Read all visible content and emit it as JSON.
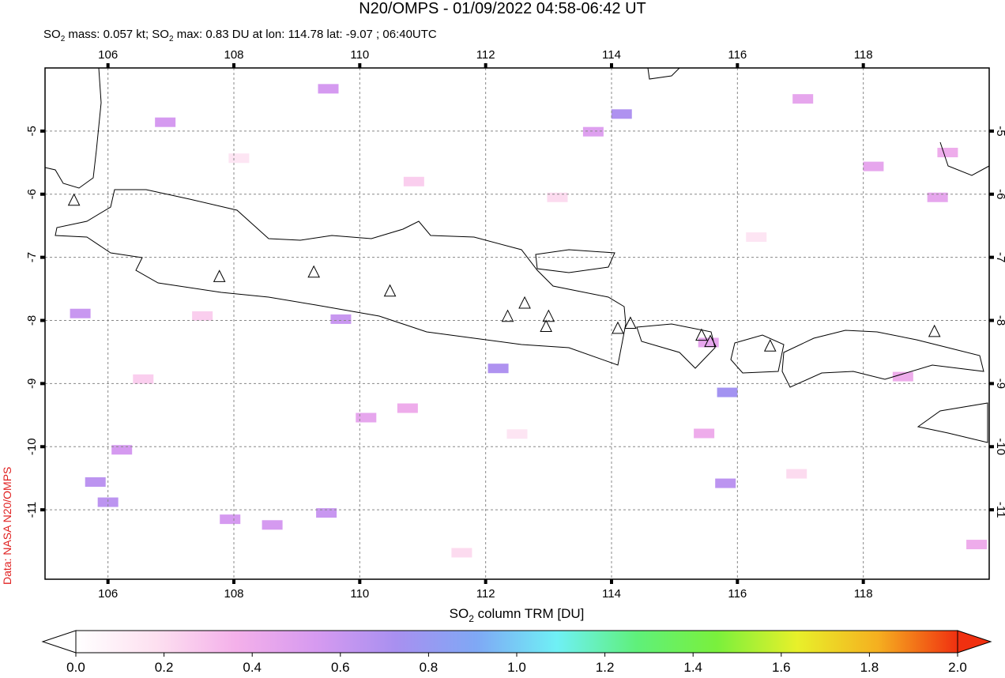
{
  "chart_data": {
    "type": "map",
    "title": "N20/OMPS - 01/09/2022 04:58-06:42 UT",
    "subtitle_parts": [
      "SO",
      "2",
      " mass: 0.057 kt; SO",
      "2",
      " max: 0.83 DU at lon: 114.78 lat: -9.07 ; 06:40UTC"
    ],
    "source": "Data: NASA N20/OMPS",
    "xlim": [
      105,
      120
    ],
    "ylim": [
      -12.1,
      -4
    ],
    "xticks": [
      106,
      108,
      110,
      112,
      114,
      116,
      118
    ],
    "yticks": [
      -5,
      -6,
      -7,
      -8,
      -9,
      -10,
      -11
    ],
    "grid": true,
    "volcanoes": [
      {
        "lon": 105.46,
        "lat": -6.1
      },
      {
        "lon": 107.77,
        "lat": -7.31
      },
      {
        "lon": 109.27,
        "lat": -7.24
      },
      {
        "lon": 110.48,
        "lat": -7.54
      },
      {
        "lon": 112.35,
        "lat": -7.94
      },
      {
        "lon": 112.62,
        "lat": -7.73
      },
      {
        "lon": 113.0,
        "lat": -7.94
      },
      {
        "lon": 112.96,
        "lat": -8.1
      },
      {
        "lon": 114.1,
        "lat": -8.13
      },
      {
        "lon": 114.3,
        "lat": -8.05
      },
      {
        "lon": 115.43,
        "lat": -8.24
      },
      {
        "lon": 115.57,
        "lat": -8.34
      },
      {
        "lon": 116.52,
        "lat": -8.41
      },
      {
        "lon": 119.13,
        "lat": -8.18
      }
    ],
    "cells": [
      {
        "lon": 114.16,
        "lat": -4.73,
        "value": 0.7
      },
      {
        "lon": 115.84,
        "lat": -9.14,
        "value": 0.75
      },
      {
        "lon": 112.2,
        "lat": -8.76,
        "value": 0.7
      },
      {
        "lon": 115.81,
        "lat": -10.58,
        "value": 0.65
      },
      {
        "lon": 109.7,
        "lat": -7.98,
        "value": 0.6
      },
      {
        "lon": 109.47,
        "lat": -11.05,
        "value": 0.6
      },
      {
        "lon": 106.0,
        "lat": -10.88,
        "value": 0.65
      },
      {
        "lon": 105.8,
        "lat": -10.56,
        "value": 0.65
      },
      {
        "lon": 105.56,
        "lat": -7.89,
        "value": 0.6
      },
      {
        "lon": 109.5,
        "lat": -4.33,
        "value": 0.55
      },
      {
        "lon": 113.71,
        "lat": -5.01,
        "value": 0.5
      },
      {
        "lon": 115.47,
        "lat": -9.79,
        "value": 0.4
      },
      {
        "lon": 115.54,
        "lat": -8.35,
        "value": 0.45
      },
      {
        "lon": 119.18,
        "lat": -6.05,
        "value": 0.45
      },
      {
        "lon": 119.8,
        "lat": -11.55,
        "value": 0.4
      },
      {
        "lon": 119.34,
        "lat": -5.34,
        "value": 0.4
      },
      {
        "lon": 108.61,
        "lat": -11.24,
        "value": 0.55
      },
      {
        "lon": 107.94,
        "lat": -11.15,
        "value": 0.55
      },
      {
        "lon": 106.22,
        "lat": -10.05,
        "value": 0.55
      },
      {
        "lon": 106.91,
        "lat": -4.86,
        "value": 0.55
      },
      {
        "lon": 117.04,
        "lat": -4.49,
        "value": 0.45
      },
      {
        "lon": 118.16,
        "lat": -5.56,
        "value": 0.45
      },
      {
        "lon": 118.63,
        "lat": -8.89,
        "value": 0.4
      },
      {
        "lon": 110.1,
        "lat": -9.54,
        "value": 0.45
      },
      {
        "lon": 110.76,
        "lat": -9.39,
        "value": 0.4
      },
      {
        "lon": 110.86,
        "lat": -5.8,
        "value": 0.25
      },
      {
        "lon": 107.5,
        "lat": -7.93,
        "value": 0.25
      },
      {
        "lon": 113.14,
        "lat": -6.05,
        "value": 0.2
      },
      {
        "lon": 116.94,
        "lat": -10.43,
        "value": 0.2
      },
      {
        "lon": 112.5,
        "lat": -9.8,
        "value": 0.15
      },
      {
        "lon": 108.08,
        "lat": -5.43,
        "value": 0.15
      },
      {
        "lon": 116.3,
        "lat": -6.68,
        "value": 0.15
      },
      {
        "lon": 111.62,
        "lat": -11.68,
        "value": 0.2
      },
      {
        "lon": 106.56,
        "lat": -8.93,
        "value": 0.25
      }
    ],
    "colorbar": {
      "label_parts": [
        "SO",
        "2",
        " column TRM [DU]"
      ],
      "lim": [
        0,
        2
      ],
      "ticks": [
        {
          "value": 0,
          "label": "0.0"
        },
        {
          "value": 0.2,
          "label": "0.2"
        },
        {
          "value": 0.4,
          "label": "0.4"
        },
        {
          "value": 0.6,
          "label": "0.6"
        },
        {
          "value": 0.8,
          "label": "0.8"
        },
        {
          "value": 1,
          "label": "1.0"
        },
        {
          "value": 1.2,
          "label": "1.2"
        },
        {
          "value": 1.4,
          "label": "1.4"
        },
        {
          "value": 1.6,
          "label": "1.6"
        },
        {
          "value": 1.8,
          "label": "1.8"
        },
        {
          "value": 2,
          "label": "2.0"
        }
      ],
      "colors": [
        "#ffffff",
        "#fde0f0",
        "#f4b0ea",
        "#d69af0",
        "#a890f0",
        "#7fa8f5",
        "#6ff0f5",
        "#5ff07a",
        "#7af03c",
        "#e8f02a",
        "#f5b020",
        "#f03010"
      ]
    }
  }
}
